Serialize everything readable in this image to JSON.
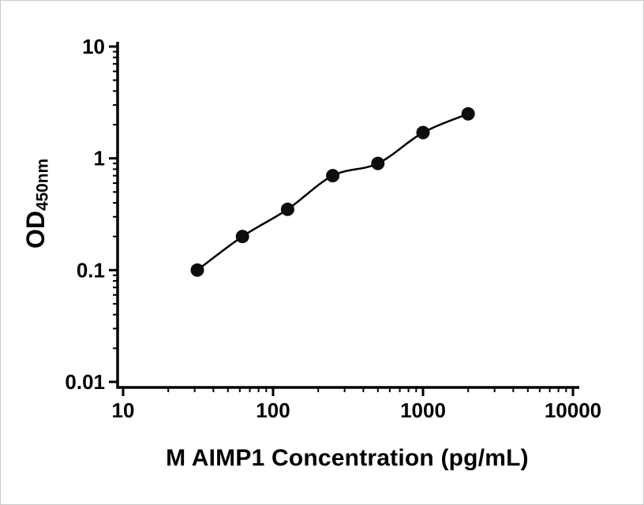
{
  "chart_data": {
    "type": "scatter",
    "title": "",
    "xlabel": "M AIMP1 Concentration (pg/mL)",
    "ylabel": "OD450nm",
    "ylabel_main": "OD",
    "ylabel_sub": "450nm",
    "x_scale": "log",
    "y_scale": "log",
    "xlim": [
      10,
      10000
    ],
    "ylim": [
      0.01,
      10
    ],
    "grid": false,
    "legend": false,
    "line_through_points": true,
    "x_ticks": [
      {
        "value": 10,
        "label": "10"
      },
      {
        "value": 100,
        "label": "100"
      },
      {
        "value": 1000,
        "label": "1000"
      },
      {
        "value": 10000,
        "label": "10000"
      }
    ],
    "y_ticks": [
      {
        "value": 10,
        "label": "10"
      },
      {
        "value": 1,
        "label": "1"
      },
      {
        "value": 0.1,
        "label": "0.1"
      },
      {
        "value": 0.01,
        "label": "0.01"
      }
    ],
    "points": [
      {
        "x": 31.25,
        "y": 0.1
      },
      {
        "x": 62.5,
        "y": 0.2
      },
      {
        "x": 125,
        "y": 0.35
      },
      {
        "x": 250,
        "y": 0.7
      },
      {
        "x": 500,
        "y": 0.9
      },
      {
        "x": 1000,
        "y": 1.7
      },
      {
        "x": 2000,
        "y": 2.5
      }
    ],
    "axis_color": "#000000",
    "curve_color": "#000000",
    "point_color": "#0d0d0d",
    "background": "#ffffff"
  }
}
